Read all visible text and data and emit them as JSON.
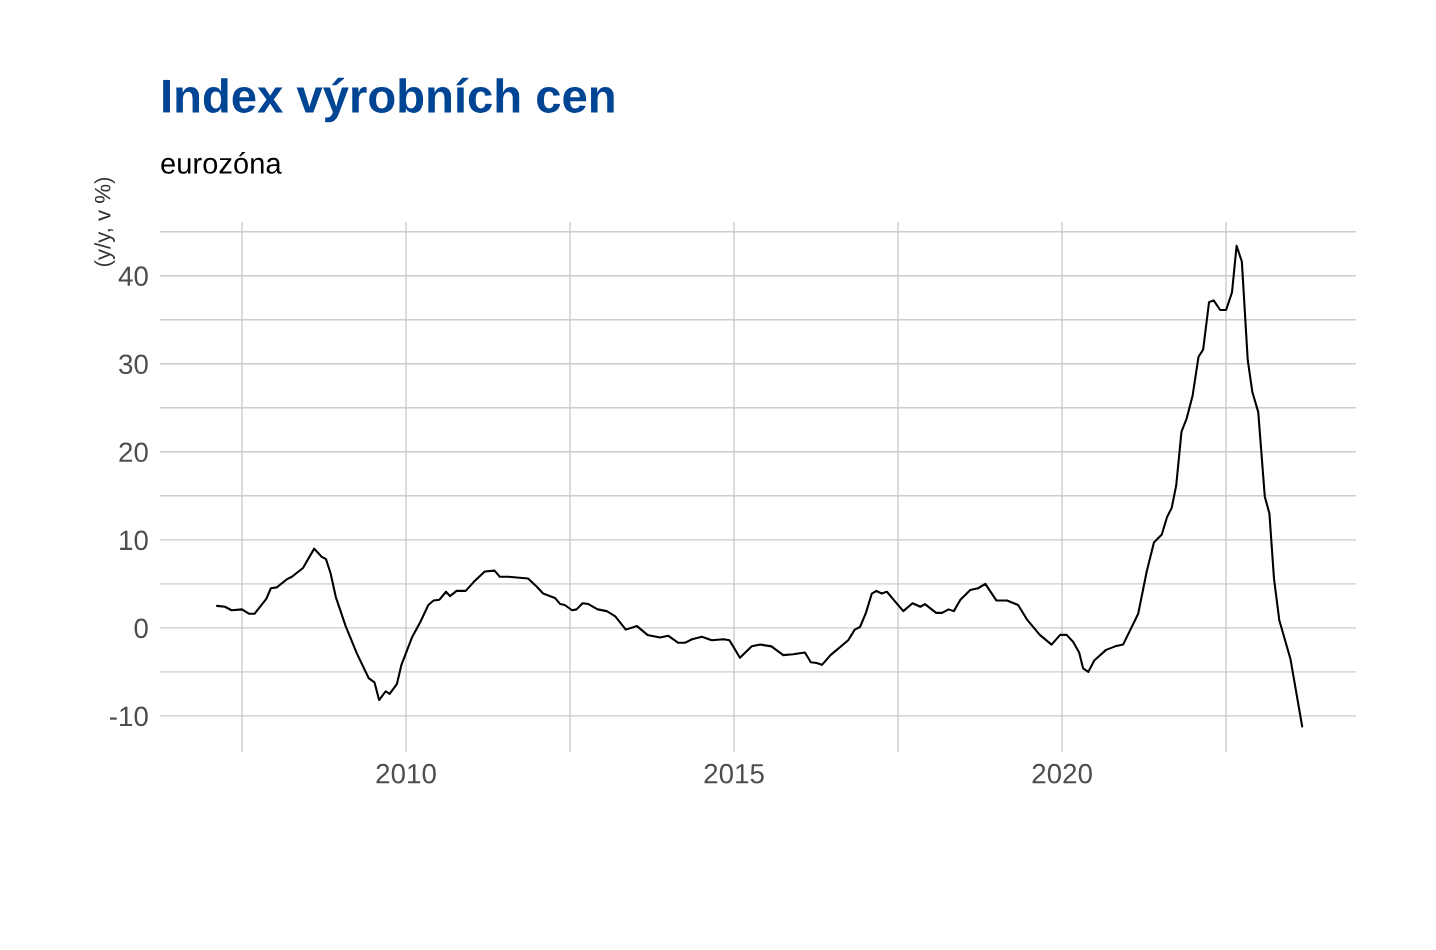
{
  "chart_data": {
    "type": "line",
    "title": "Index výrobních cen",
    "subtitle": "eurozóna",
    "ylabel": "(y/y, v %)",
    "xlim": [
      2006.25,
      2024.48
    ],
    "ylim": [
      -14.1,
      46.1
    ],
    "xticks": [
      {
        "value": 2007.5,
        "label": null
      },
      2010,
      {
        "value": 2012.5,
        "label": null
      },
      2015,
      {
        "value": 2017.5,
        "label": null
      },
      2020,
      {
        "value": 2022.5,
        "label": null
      }
    ],
    "yticks": [
      -10,
      {
        "value": -5,
        "label": null
      },
      0,
      {
        "value": 5,
        "label": null
      },
      10,
      {
        "value": 15,
        "label": null
      },
      20,
      {
        "value": 25,
        "label": null
      },
      30,
      {
        "value": 35,
        "label": null
      },
      40,
      {
        "value": 45,
        "label": null
      }
    ],
    "grid": true,
    "marker": "none",
    "line_style": "solid",
    "series": [
      {
        "color": "#000000",
        "x": [
          2007.12,
          2007.24,
          2007.34,
          2007.5,
          2007.61,
          2007.69,
          2007.87,
          2007.94,
          2008.03,
          2008.18,
          2008.26,
          2008.43,
          2008.6,
          2008.71,
          2008.78,
          2008.85,
          2008.93,
          2009.08,
          2009.25,
          2009.43,
          2009.52,
          2009.59,
          2009.69,
          2009.75,
          2009.86,
          2009.93,
          2010.09,
          2010.22,
          2010.34,
          2010.42,
          2010.51,
          2010.61,
          2010.67,
          2010.77,
          2010.91,
          2011.03,
          2011.2,
          2011.35,
          2011.43,
          2011.56,
          2011.86,
          2011.99,
          2012.09,
          2012.27,
          2012.35,
          2012.42,
          2012.53,
          2012.6,
          2012.69,
          2012.78,
          2012.92,
          2013.06,
          2013.19,
          2013.35,
          2013.52,
          2013.68,
          2013.87,
          2014.0,
          2014.15,
          2014.25,
          2014.36,
          2014.51,
          2014.66,
          2014.84,
          2014.93,
          2015.09,
          2015.27,
          2015.4,
          2015.57,
          2015.75,
          2015.9,
          2016.08,
          2016.17,
          2016.26,
          2016.34,
          2016.47,
          2016.74,
          2016.84,
          2016.92,
          2017.01,
          2017.1,
          2017.17,
          2017.25,
          2017.33,
          2017.43,
          2017.58,
          2017.72,
          2017.84,
          2017.91,
          2018.08,
          2018.17,
          2018.27,
          2018.35,
          2018.45,
          2018.6,
          2018.72,
          2018.83,
          2019.0,
          2019.16,
          2019.33,
          2019.46,
          2019.66,
          2019.84,
          2019.97,
          2020.07,
          2020.17,
          2020.26,
          2020.32,
          2020.4,
          2020.49,
          2020.67,
          2020.81,
          2020.93,
          2021.16,
          2021.29,
          2021.4,
          2021.52,
          2021.6,
          2021.67,
          2021.74,
          2021.82,
          2021.9,
          2021.99,
          2022.08,
          2022.15,
          2022.24,
          2022.31,
          2022.41,
          2022.5,
          2022.59,
          2022.66,
          2022.74,
          2022.83,
          2022.9,
          2022.99,
          2023.09,
          2023.16,
          2023.23,
          2023.31,
          2023.48,
          2023.66
        ],
        "values": [
          2.5,
          2.4,
          2.0,
          2.1,
          1.6,
          1.6,
          3.3,
          4.5,
          4.6,
          5.5,
          5.8,
          6.8,
          9.0,
          8.1,
          7.8,
          6.2,
          3.5,
          0.2,
          -2.9,
          -5.7,
          -6.2,
          -8.2,
          -7.2,
          -7.5,
          -6.4,
          -4.2,
          -1.1,
          0.7,
          2.6,
          3.1,
          3.2,
          4.1,
          3.6,
          4.2,
          4.2,
          5.2,
          6.4,
          6.5,
          5.8,
          5.8,
          5.6,
          4.7,
          3.9,
          3.4,
          2.7,
          2.6,
          2.0,
          2.1,
          2.8,
          2.7,
          2.1,
          1.9,
          1.3,
          -0.2,
          0.2,
          -0.8,
          -1.1,
          -0.9,
          -1.7,
          -1.7,
          -1.3,
          -1.0,
          -1.4,
          -1.3,
          -1.4,
          -3.4,
          -2.1,
          -1.9,
          -2.1,
          -3.1,
          -3.0,
          -2.8,
          -3.9,
          -4.0,
          -4.2,
          -3.1,
          -1.4,
          -0.2,
          0.1,
          1.7,
          3.9,
          4.2,
          3.9,
          4.1,
          3.2,
          1.9,
          2.8,
          2.4,
          2.7,
          1.7,
          1.7,
          2.1,
          1.9,
          3.2,
          4.3,
          4.5,
          5.0,
          3.1,
          3.1,
          2.6,
          1.0,
          -0.8,
          -1.9,
          -0.8,
          -0.8,
          -1.6,
          -2.8,
          -4.6,
          -5.0,
          -3.7,
          -2.5,
          -2.1,
          -1.9,
          1.6,
          6.4,
          9.7,
          10.6,
          12.6,
          13.6,
          16.2,
          22.3,
          23.8,
          26.4,
          30.8,
          31.6,
          37.0,
          37.2,
          36.1,
          36.1,
          38.1,
          43.4,
          41.6,
          30.4,
          26.8,
          24.5,
          14.9,
          13.0,
          5.6,
          0.9,
          -3.5,
          -11.2
        ]
      }
    ]
  }
}
